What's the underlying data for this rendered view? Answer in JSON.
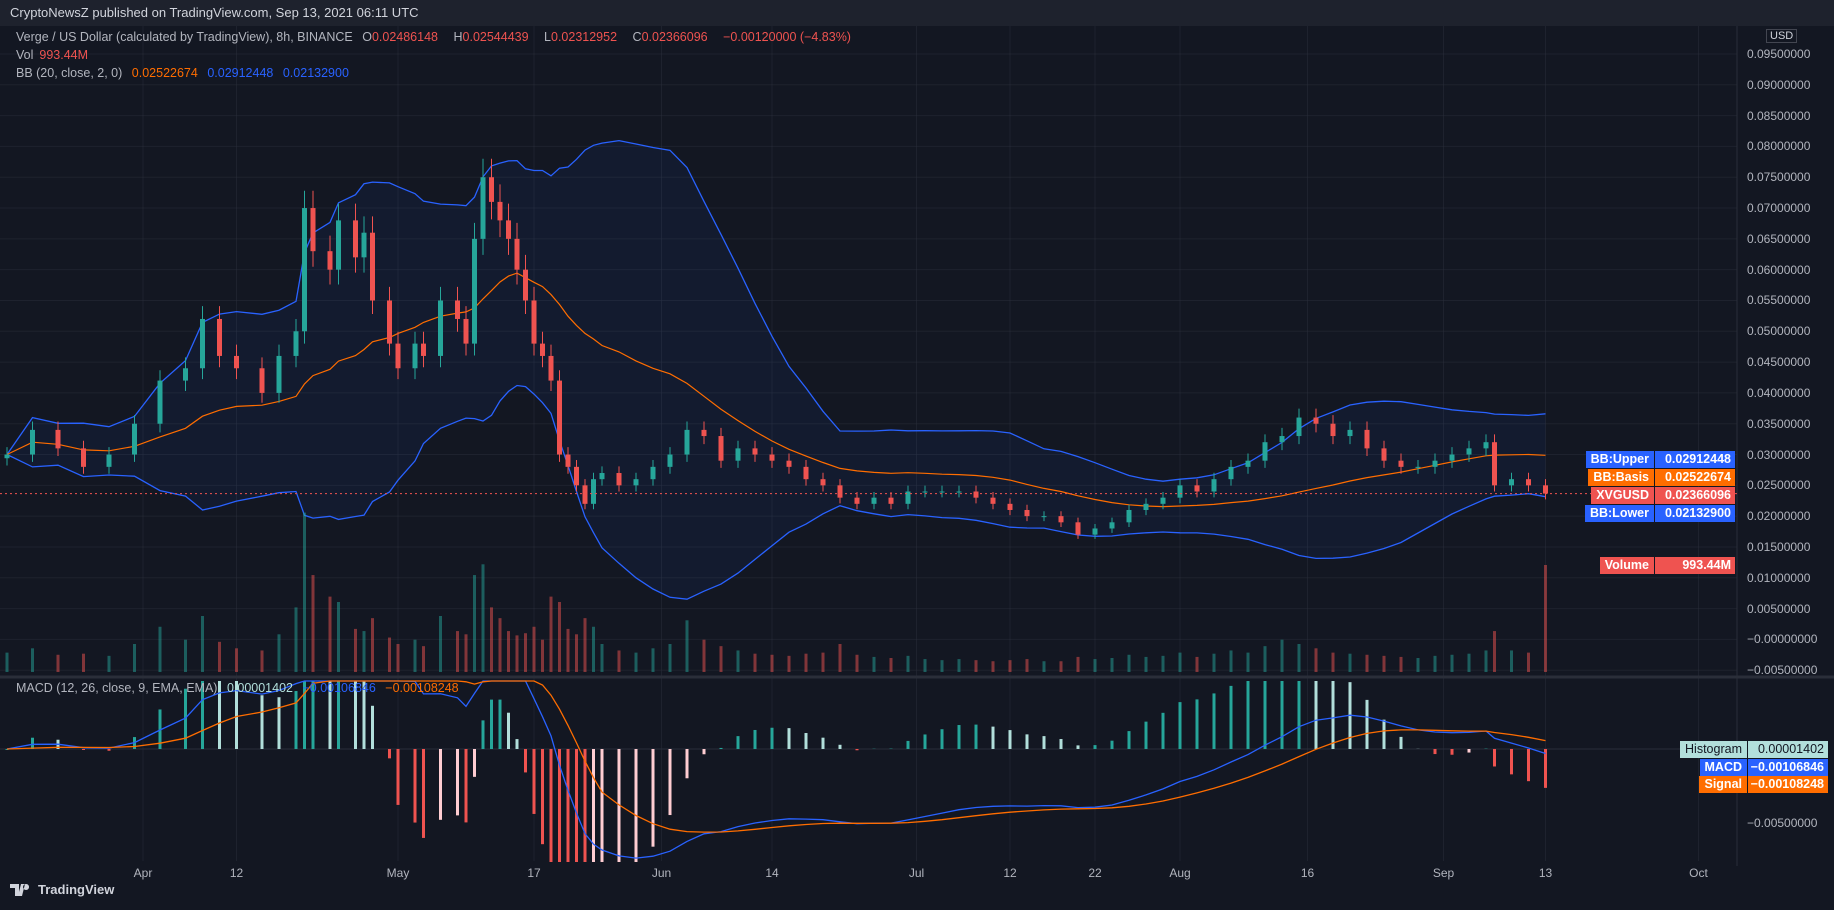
{
  "header": {
    "published": "CryptoNewsZ published on TradingView.com, Sep 13, 2021 06:11 UTC"
  },
  "legend": {
    "symbol": "Verge / US Dollar (calculated by TradingView), 8h, BINANCE",
    "o_label": "O",
    "o": "0.02486148",
    "h_label": "H",
    "h": "0.02544439",
    "l_label": "L",
    "l": "0.02312952",
    "c_label": "C",
    "c": "0.02366096",
    "change": "−0.00120000 (−4.83%)",
    "vol_label": "Vol",
    "vol": "993.44M",
    "bb_label": "BB (20, close, 2, 0)",
    "bb_basis": "0.02522674",
    "bb_upper": "0.02912448",
    "bb_lower": "0.02132900",
    "macd_label": "MACD (12, 26, close, 9, EMA, EMA)",
    "macd_hist": "0.00001402",
    "macd": "−0.00106846",
    "macd_signal": "−0.00108248"
  },
  "price_tags": [
    {
      "label": "BB:Upper",
      "value": "0.02912448",
      "color": "#2962ff"
    },
    {
      "label": "BB:Basis",
      "value": "0.02522674",
      "color": "#ff6d00"
    },
    {
      "label": "XVGUSD",
      "value": "0.02366096",
      "color": "#ef5350"
    },
    {
      "label": "BB:Lower",
      "value": "0.02132900",
      "color": "#2962ff"
    },
    {
      "label": "Volume",
      "value": "993.44M",
      "color": "#ef5350"
    }
  ],
  "macd_tags": [
    {
      "label": "Histogram",
      "value": "0.00001402",
      "color": "#b2dfdb"
    },
    {
      "label": "MACD",
      "value": "−0.00106846",
      "color": "#2962ff"
    },
    {
      "label": "Signal",
      "value": "−0.00108248",
      "color": "#ff6d00"
    }
  ],
  "currency": "USD",
  "footer": {
    "brand": "TradingView"
  },
  "colors": {
    "up": "#26a69a",
    "down": "#ef5350",
    "bb_band": "#2962ff",
    "bb_basis": "#ff6d00",
    "background": "#131722",
    "grid": "#2a2e39"
  },
  "chart_data": {
    "type": "candlestick",
    "symbol": "XVGUSD",
    "interval": "8h",
    "ylim": [
      0.0,
      0.095
    ],
    "y_ticks": [
      "0.09500000",
      "0.09000000",
      "0.08500000",
      "0.08000000",
      "0.07500000",
      "0.07000000",
      "0.06500000",
      "0.06000000",
      "0.05500000",
      "0.05000000",
      "0.04500000",
      "0.04000000",
      "0.03500000",
      "0.03000000",
      "0.02500000",
      "0.02000000",
      "0.01500000",
      "0.01000000",
      "0.00500000",
      "−0.00000000",
      "−0.00500000"
    ],
    "macd_y_ticks": [
      "−0.00500000"
    ],
    "x_ticks": [
      {
        "label": "Apr",
        "date": "2021-04-01"
      },
      {
        "label": "12",
        "date": "2021-04-12"
      },
      {
        "label": "May",
        "date": "2021-05-01"
      },
      {
        "label": "17",
        "date": "2021-05-17"
      },
      {
        "label": "Jun",
        "date": "2021-06-01"
      },
      {
        "label": "14",
        "date": "2021-06-14"
      },
      {
        "label": "Jul",
        "date": "2021-07-01"
      },
      {
        "label": "12",
        "date": "2021-07-12"
      },
      {
        "label": "22",
        "date": "2021-07-22"
      },
      {
        "label": "Aug",
        "date": "2021-08-01"
      },
      {
        "label": "16",
        "date": "2021-08-16"
      },
      {
        "label": "Sep",
        "date": "2021-09-01"
      },
      {
        "label": "13",
        "date": "2021-09-13"
      },
      {
        "label": "Oct",
        "date": "2021-10-01"
      }
    ],
    "last_price": 0.02366096,
    "grid": true,
    "points": [
      [
        "2021-03-16",
        0.03,
        180
      ],
      [
        "2021-03-19",
        0.034,
        220
      ],
      [
        "2021-03-22",
        0.031,
        160
      ],
      [
        "2021-03-25",
        0.028,
        170
      ],
      [
        "2021-03-28",
        0.03,
        150
      ],
      [
        "2021-03-31",
        0.035,
        260
      ],
      [
        "2021-04-03",
        0.042,
        420
      ],
      [
        "2021-04-06",
        0.044,
        300
      ],
      [
        "2021-04-08",
        0.052,
        520
      ],
      [
        "2021-04-10",
        0.046,
        280
      ],
      [
        "2021-04-12",
        0.044,
        220
      ],
      [
        "2021-04-15",
        0.04,
        200
      ],
      [
        "2021-04-17",
        0.046,
        350
      ],
      [
        "2021-04-19",
        0.05,
        600
      ],
      [
        "2021-04-20",
        0.07,
        1480
      ],
      [
        "2021-04-21",
        0.063,
        900
      ],
      [
        "2021-04-23",
        0.06,
        700
      ],
      [
        "2021-04-24",
        0.068,
        650
      ],
      [
        "2021-04-26",
        0.062,
        400
      ],
      [
        "2021-04-27",
        0.066,
        380
      ],
      [
        "2021-04-28",
        0.055,
        500
      ],
      [
        "2021-04-30",
        0.048,
        320
      ],
      [
        "2021-05-01",
        0.044,
        260
      ],
      [
        "2021-05-03",
        0.048,
        300
      ],
      [
        "2021-05-04",
        0.046,
        240
      ],
      [
        "2021-05-06",
        0.055,
        520
      ],
      [
        "2021-05-08",
        0.052,
        380
      ],
      [
        "2021-05-09",
        0.048,
        350
      ],
      [
        "2021-05-10",
        0.065,
        900
      ],
      [
        "2021-05-11",
        0.075,
        1000
      ],
      [
        "2021-05-12",
        0.071,
        600
      ],
      [
        "2021-05-13",
        0.068,
        500
      ],
      [
        "2021-05-14",
        0.065,
        380
      ],
      [
        "2021-05-15",
        0.06,
        340
      ],
      [
        "2021-05-16",
        0.055,
        360
      ],
      [
        "2021-05-17",
        0.048,
        420
      ],
      [
        "2021-05-18",
        0.046,
        300
      ],
      [
        "2021-05-19",
        0.042,
        700
      ],
      [
        "2021-05-20",
        0.03,
        650
      ],
      [
        "2021-05-21",
        0.028,
        400
      ],
      [
        "2021-05-22",
        0.025,
        350
      ],
      [
        "2021-05-23",
        0.022,
        500
      ],
      [
        "2021-05-24",
        0.026,
        420
      ],
      [
        "2021-05-25",
        0.027,
        260
      ],
      [
        "2021-05-27",
        0.025,
        200
      ],
      [
        "2021-05-29",
        0.026,
        180
      ],
      [
        "2021-05-31",
        0.028,
        220
      ],
      [
        "2021-06-02",
        0.03,
        260
      ],
      [
        "2021-06-04",
        0.034,
        480
      ],
      [
        "2021-06-06",
        0.033,
        300
      ],
      [
        "2021-06-08",
        0.029,
        240
      ],
      [
        "2021-06-10",
        0.031,
        200
      ],
      [
        "2021-06-12",
        0.03,
        170
      ],
      [
        "2021-06-14",
        0.029,
        160
      ],
      [
        "2021-06-16",
        0.028,
        150
      ],
      [
        "2021-06-18",
        0.026,
        170
      ],
      [
        "2021-06-20",
        0.025,
        180
      ],
      [
        "2021-06-22",
        0.023,
        260
      ],
      [
        "2021-06-24",
        0.022,
        160
      ],
      [
        "2021-06-26",
        0.023,
        140
      ],
      [
        "2021-06-28",
        0.022,
        130
      ],
      [
        "2021-06-30",
        0.024,
        150
      ],
      [
        "2021-07-02",
        0.024,
        120
      ],
      [
        "2021-07-04",
        0.024,
        110
      ],
      [
        "2021-07-06",
        0.024,
        120
      ],
      [
        "2021-07-08",
        0.023,
        110
      ],
      [
        "2021-07-10",
        0.022,
        100
      ],
      [
        "2021-07-12",
        0.021,
        110
      ],
      [
        "2021-07-14",
        0.02,
        120
      ],
      [
        "2021-07-16",
        0.02,
        100
      ],
      [
        "2021-07-18",
        0.019,
        100
      ],
      [
        "2021-07-20",
        0.017,
        140
      ],
      [
        "2021-07-22",
        0.018,
        120
      ],
      [
        "2021-07-24",
        0.019,
        130
      ],
      [
        "2021-07-26",
        0.021,
        160
      ],
      [
        "2021-07-28",
        0.022,
        140
      ],
      [
        "2021-07-30",
        0.023,
        150
      ],
      [
        "2021-08-01",
        0.025,
        180
      ],
      [
        "2021-08-03",
        0.024,
        140
      ],
      [
        "2021-08-05",
        0.026,
        170
      ],
      [
        "2021-08-07",
        0.028,
        200
      ],
      [
        "2021-08-09",
        0.029,
        180
      ],
      [
        "2021-08-11",
        0.032,
        240
      ],
      [
        "2021-08-13",
        0.033,
        300
      ],
      [
        "2021-08-15",
        0.036,
        260
      ],
      [
        "2021-08-17",
        0.035,
        220
      ],
      [
        "2021-08-19",
        0.033,
        180
      ],
      [
        "2021-08-21",
        0.034,
        170
      ],
      [
        "2021-08-23",
        0.031,
        160
      ],
      [
        "2021-08-25",
        0.029,
        150
      ],
      [
        "2021-08-27",
        0.028,
        140
      ],
      [
        "2021-08-29",
        0.028,
        130
      ],
      [
        "2021-08-31",
        0.029,
        150
      ],
      [
        "2021-09-02",
        0.03,
        160
      ],
      [
        "2021-09-04",
        0.031,
        170
      ],
      [
        "2021-09-06",
        0.032,
        200
      ],
      [
        "2021-09-07",
        0.025,
        380
      ],
      [
        "2021-09-09",
        0.026,
        200
      ],
      [
        "2021-09-11",
        0.025,
        180
      ],
      [
        "2021-09-13",
        0.02366096,
        993.44
      ]
    ]
  }
}
